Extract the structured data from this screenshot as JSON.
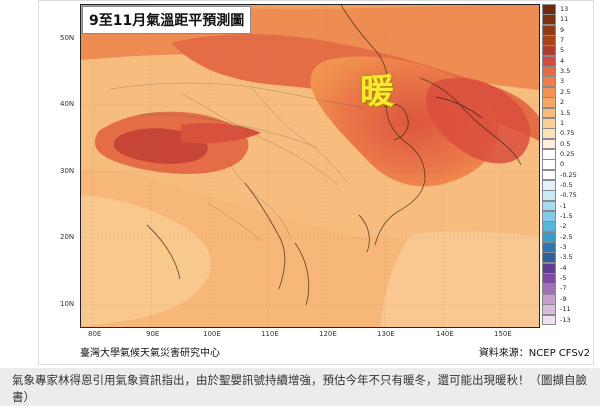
{
  "map": {
    "title": "9至11月氣溫距平預測圖",
    "highlight_label": "暖",
    "credit_left": "臺灣大學氣候天氣災害研究中心",
    "credit_right": "資料來源：NCEP CFSv2",
    "lat_labels": [
      "50N",
      "40N",
      "30N",
      "20N",
      "10N"
    ],
    "lon_labels": [
      "80E",
      "90E",
      "100E",
      "110E",
      "120E",
      "130E",
      "140E",
      "150E"
    ],
    "legend": [
      {
        "label": "13",
        "color": "#6b2b10"
      },
      {
        "label": "11",
        "color": "#7b3312"
      },
      {
        "label": "9",
        "color": "#8f3a15"
      },
      {
        "label": "7",
        "color": "#a24618"
      },
      {
        "label": "5",
        "color": "#b23c2f"
      },
      {
        "label": "4",
        "color": "#d74b3d"
      },
      {
        "label": "3.5",
        "color": "#e56a48"
      },
      {
        "label": "3",
        "color": "#ef7f4a"
      },
      {
        "label": "2.5",
        "color": "#f39353"
      },
      {
        "label": "2",
        "color": "#f5a663"
      },
      {
        "label": "1.5",
        "color": "#f8bb78"
      },
      {
        "label": "1",
        "color": "#fad096"
      },
      {
        "label": "0.75",
        "color": "#fbe0b8"
      },
      {
        "label": "0.5",
        "color": "#fdeedd"
      },
      {
        "label": "0.25",
        "color": "#ffffff"
      },
      {
        "label": "0",
        "color": "#ffffff"
      },
      {
        "label": "-0.25",
        "color": "#ffffff"
      },
      {
        "label": "-0.5",
        "color": "#e1f2fb"
      },
      {
        "label": "-0.75",
        "color": "#c9e9f7"
      },
      {
        "label": "-1",
        "color": "#a8dbef"
      },
      {
        "label": "-1.5",
        "color": "#7fcbe8"
      },
      {
        "label": "-2",
        "color": "#55b6dd"
      },
      {
        "label": "-2.5",
        "color": "#3b9ccb"
      },
      {
        "label": "-3",
        "color": "#3075b3"
      },
      {
        "label": "-3.5",
        "color": "#2f5f9c"
      },
      {
        "label": "-4",
        "color": "#603f92"
      },
      {
        "label": "-5",
        "color": "#7f4a9f"
      },
      {
        "label": "-7",
        "color": "#a070b4"
      },
      {
        "label": "-9",
        "color": "#c69dcb"
      },
      {
        "label": "-11",
        "color": "#d9bbdc"
      },
      {
        "label": "-13",
        "color": "#eee0ef"
      }
    ]
  },
  "caption": {
    "text": "氣象專家林得恩引用氣象資訊指出，由於聖嬰訊號持續增強，預估今年不只有暖冬，還可能出現暖秋！（圖擷自臉書）"
  }
}
